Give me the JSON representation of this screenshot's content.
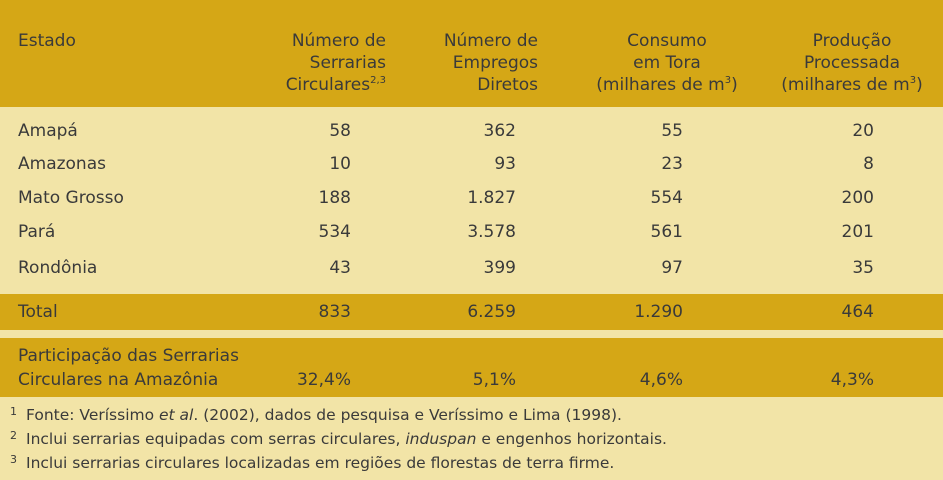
{
  "header": {
    "estado": "Estado",
    "serrarias": [
      "Número de",
      "Serrarias",
      "Circulares"
    ],
    "serrarias_sup": "2,3",
    "empregos": [
      "Número de",
      "Empregos",
      "Diretos"
    ],
    "consumo": [
      "Consumo",
      "em Tora",
      "(milhares de m"
    ],
    "consumo_sup": "3",
    "consumo_tail": ")",
    "producao": [
      "Produção",
      "Processada",
      "(milhares de m"
    ],
    "producao_sup": "3",
    "producao_tail": ")"
  },
  "rows": [
    {
      "estado": "Amapá",
      "serrarias": "58",
      "empregos": "362",
      "consumo": "55",
      "producao": "20"
    },
    {
      "estado": "Amazonas",
      "serrarias": "10",
      "empregos": "93",
      "consumo": "23",
      "producao": "8"
    },
    {
      "estado": "Mato Grosso",
      "serrarias": "188",
      "empregos": "1.827",
      "consumo": "554",
      "producao": "200"
    },
    {
      "estado": "Pará",
      "serrarias": "534",
      "empregos": "3.578",
      "consumo": "561",
      "producao": "201"
    },
    {
      "estado": "Rondônia",
      "serrarias": "43",
      "empregos": "399",
      "consumo": "97",
      "producao": "35"
    }
  ],
  "total": {
    "label": "Total",
    "serrarias": "833",
    "empregos": "6.259",
    "consumo": "1.290",
    "producao": "464"
  },
  "participacao": {
    "label_1": "Participação das Serrarias",
    "label_2": "Circulares na Amazônia",
    "serrarias": "32,4%",
    "empregos": "5,1%",
    "consumo": "4,6%",
    "producao": "4,3%"
  },
  "notes": [
    {
      "mark": "1",
      "pre": "Fonte: Veríssimo ",
      "italic": "et al",
      "post": ". (2002), dados de pesquisa e Veríssimo e Lima (1998)."
    },
    {
      "mark": "2",
      "pre": "Inclui serrarias equipadas com serras circulares, ",
      "italic": "induspan",
      "post": " e engenhos horizontais."
    },
    {
      "mark": "3",
      "pre": "Inclui serrarias circulares localizadas em regiões de florestas de terra firme.",
      "italic": "",
      "post": ""
    }
  ],
  "colors": {
    "header_band": "#d5a716",
    "background": "#f2e4a7",
    "text": "#3a3a3a"
  }
}
